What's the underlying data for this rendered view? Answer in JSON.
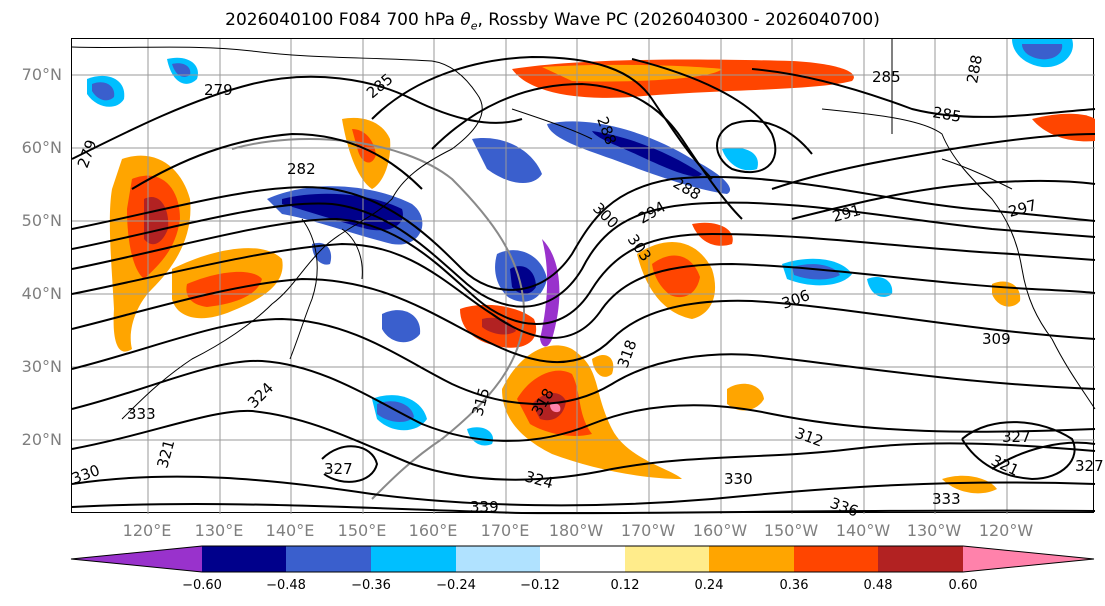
{
  "title": "2026040100 F084 700 hPa θe, Rossby Wave PC (2026040300 - 2026040700)",
  "lat_labels": [
    "70°N",
    "60°N",
    "50°N",
    "40°N",
    "30°N",
    "20°N"
  ],
  "lon_labels": [
    "120°E",
    "130°E",
    "140°E",
    "150°E",
    "160°E",
    "170°E",
    "180°W",
    "170°W",
    "160°W",
    "150°W",
    "140°W",
    "130°W",
    "120°W"
  ],
  "colorbar": {
    "ticks": [
      "−0.60",
      "−0.48",
      "−0.36",
      "−0.24",
      "−0.12",
      "0.12",
      "0.24",
      "0.36",
      "0.48",
      "0.60"
    ],
    "colors": [
      "#9932cc",
      "#00008b",
      "#3a5fcd",
      "#00bfff",
      "#b0e2ff",
      "#ffffff",
      "#ffec8b",
      "#ffa500",
      "#ff4500",
      "#b22222",
      "#ff82ab"
    ]
  },
  "contour_labels": [
    "279",
    "279",
    "282",
    "285",
    "285",
    "285",
    "288",
    "288",
    "288",
    "291",
    "294",
    "297",
    "300",
    "303",
    "306",
    "309",
    "312",
    "315",
    "318",
    "318",
    "321",
    "321",
    "324",
    "324",
    "327",
    "327",
    "327",
    "330",
    "330",
    "333",
    "333",
    "336",
    "339"
  ]
}
